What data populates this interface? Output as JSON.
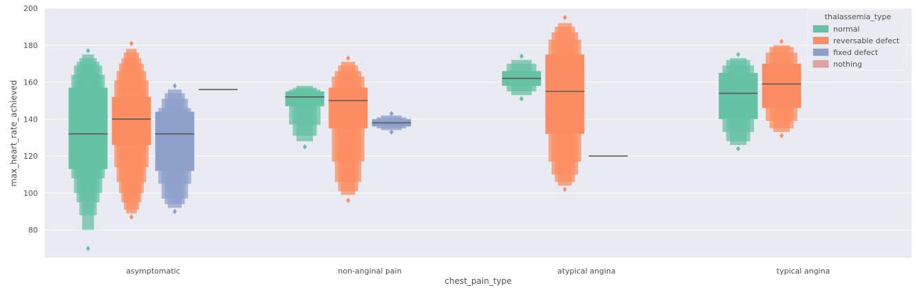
{
  "chart_data": {
    "type": "boxen",
    "x_label": "chest_pain_type",
    "y_label": "max_heart_rate_achieved",
    "y_range": [
      65,
      200
    ],
    "y_ticks": [
      80,
      100,
      120,
      140,
      160,
      180,
      200
    ],
    "categories": [
      "asymptomatic",
      "non-anginal pain",
      "atypical angina",
      "typical angina"
    ],
    "legend": {
      "title": "thalassemia_type",
      "entries": [
        "normal",
        "reversable defect",
        "fixed defect",
        "nothing"
      ],
      "placement": "top-right"
    },
    "colors": {
      "normal": "#66c2a5",
      "reversable defect": "#fc8d62",
      "fixed defect": "#8da0cb",
      "nothing": "#e5a0a0",
      "median": "#595959",
      "background": "#eaeaf2",
      "grid": "#ffffff"
    },
    "series": [
      {
        "name": "normal",
        "boxes": [
          {
            "category": "asymptomatic",
            "median": 132,
            "levels": [
              [
                113,
                157
              ],
              [
                108,
                164
              ],
              [
                100,
                169
              ],
              [
                95,
                171
              ],
              [
                88,
                173
              ],
              [
                80,
                175
              ]
            ],
            "outliers": [
              70,
              177
            ]
          },
          {
            "category": "non-anginal pain",
            "median": 152,
            "levels": [
              [
                147,
                155
              ],
              [
                137,
                156
              ],
              [
                131,
                157
              ],
              [
                128,
                158
              ]
            ],
            "outliers": [
              125
            ]
          },
          {
            "category": "atypical angina",
            "median": 162,
            "levels": [
              [
                158,
                166
              ],
              [
                155,
                170
              ],
              [
                153,
                172
              ]
            ],
            "outliers": [
              151,
              174
            ]
          },
          {
            "category": "typical angina",
            "median": 154,
            "levels": [
              [
                140,
                165
              ],
              [
                133,
                169
              ],
              [
                128,
                172
              ],
              [
                126,
                173
              ]
            ],
            "outliers": [
              124,
              175
            ]
          }
        ]
      },
      {
        "name": "reversable defect",
        "boxes": [
          {
            "category": "asymptomatic",
            "median": 140,
            "levels": [
              [
                126,
                152
              ],
              [
                114,
                161
              ],
              [
                106,
                166
              ],
              [
                100,
                170
              ],
              [
                95,
                173
              ],
              [
                91,
                176
              ],
              [
                89,
                178
              ]
            ],
            "outliers": [
              87,
              181
            ]
          },
          {
            "category": "non-anginal pain",
            "median": 150,
            "levels": [
              [
                135,
                157
              ],
              [
                117,
                163
              ],
              [
                106,
                166
              ],
              [
                101,
                169
              ],
              [
                99,
                171
              ]
            ],
            "outliers": [
              96,
              173
            ]
          },
          {
            "category": "atypical angina",
            "median": 155,
            "levels": [
              [
                132,
                175
              ],
              [
                117,
                183
              ],
              [
                110,
                187
              ],
              [
                106,
                190
              ],
              [
                104,
                192
              ]
            ],
            "outliers": [
              102,
              195
            ]
          },
          {
            "category": "typical angina",
            "median": 159,
            "levels": [
              [
                146,
                170
              ],
              [
                139,
                176
              ],
              [
                135,
                179
              ],
              [
                133,
                180
              ]
            ],
            "outliers": [
              131,
              182
            ]
          }
        ]
      },
      {
        "name": "fixed defect",
        "boxes": [
          {
            "category": "asymptomatic",
            "median": 132,
            "levels": [
              [
                112,
                144
              ],
              [
                105,
                146
              ],
              [
                97,
                151
              ],
              [
                94,
                154
              ],
              [
                92,
                156
              ]
            ],
            "outliers": [
              90,
              158
            ]
          },
          {
            "category": "non-anginal pain",
            "median": 138,
            "levels": [
              [
                136,
                140
              ],
              [
                135,
                141
              ],
              [
                134,
                142
              ]
            ],
            "outliers": [
              133,
              143
            ]
          },
          {
            "category": "atypical angina",
            "median": 120,
            "levels": [],
            "outliers": []
          }
        ]
      },
      {
        "name": "nothing",
        "boxes": [
          {
            "category": "asymptomatic",
            "median": 156,
            "levels": [],
            "outliers": []
          }
        ]
      }
    ]
  }
}
